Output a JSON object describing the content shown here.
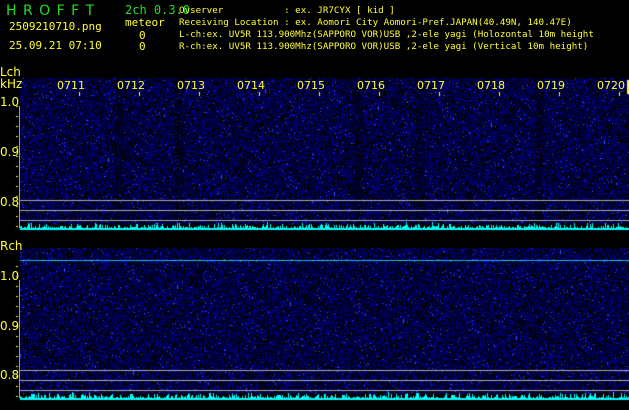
{
  "app": {
    "title": "H R O F F T",
    "version": "2ch 0.3.0"
  },
  "file": {
    "name": "2509210710.png",
    "datetime": "25.09.21 07:10"
  },
  "meteor": {
    "label": "meteor",
    "lch_count": "0",
    "rch_count": "0"
  },
  "info": {
    "observer": "Ovserver           : ex. JR7CYX [ kid ]",
    "location": "Receiving Location : ex. Aomori City Aomori-Pref.JAPAN(40.49N, 140.47E)",
    "lch": "L-ch:ex. UV5R 113.900Mhz(SAPPORO VOR)USB ,2-ele yagi (Holozontal 10m height",
    "rch": "R-ch:ex. UV5R 113.900Mhz(SAPPORO VOR)USB ,2-ele yagi (Vertical 10m height)"
  },
  "lch": {
    "label": "Lch",
    "unit": "kHz",
    "ticks": [
      "1.0",
      "0.9",
      "0.8"
    ]
  },
  "rch": {
    "label": "Rch",
    "ticks": [
      "1.0",
      "0.9",
      "0.8"
    ]
  },
  "time_labels": [
    "0711",
    "0712",
    "0713",
    "0714",
    "0715",
    "0716",
    "0717",
    "0718",
    "0719",
    "0720"
  ],
  "colors": {
    "text": "#ffff33",
    "title": "#22dd22",
    "noise": "#1a1aff",
    "level": "#00ffff",
    "carrier": "#33ff99",
    "guide": "#aaaaaa"
  }
}
